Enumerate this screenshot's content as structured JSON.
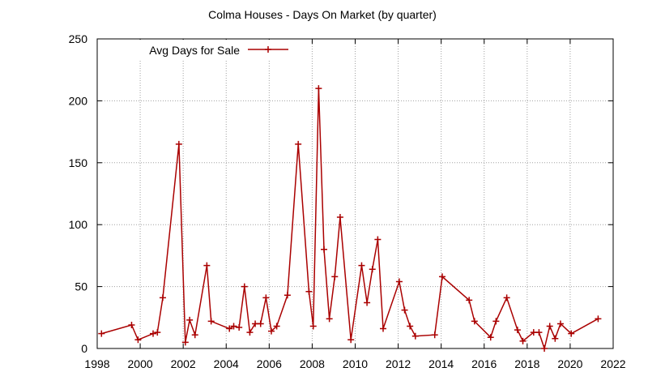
{
  "chart_data": {
    "type": "line",
    "title": "Colma Houses - Days On Market (by quarter)",
    "xlabel": "",
    "ylabel": "",
    "xlim": [
      1998,
      2022
    ],
    "ylim": [
      0,
      250
    ],
    "xticks": [
      1998,
      2000,
      2002,
      2004,
      2006,
      2008,
      2010,
      2012,
      2014,
      2016,
      2018,
      2020,
      2022
    ],
    "yticks": [
      0,
      50,
      100,
      150,
      200,
      250
    ],
    "grid": true,
    "legend_position": "top-left",
    "series": [
      {
        "name": "Avg Days for Sale",
        "color": "#aa0000",
        "marker": "plus",
        "x": [
          1998.2,
          1999.6,
          1999.9,
          2000.6,
          2000.8,
          2001.05,
          2001.8,
          2002.1,
          2002.3,
          2002.55,
          2003.1,
          2003.3,
          2004.15,
          2004.35,
          2004.6,
          2004.85,
          2005.1,
          2005.35,
          2005.6,
          2005.85,
          2006.1,
          2006.35,
          2006.85,
          2007.35,
          2007.85,
          2008.05,
          2008.3,
          2008.55,
          2008.8,
          2009.05,
          2009.3,
          2009.8,
          2010.3,
          2010.55,
          2010.8,
          2011.05,
          2011.3,
          2012.05,
          2012.3,
          2012.55,
          2012.8,
          2013.7,
          2014.05,
          2015.3,
          2015.55,
          2016.3,
          2016.55,
          2017.05,
          2017.55,
          2017.8,
          2018.3,
          2018.55,
          2018.8,
          2019.05,
          2019.3,
          2019.55,
          2020.05,
          2021.3
        ],
        "values": [
          12,
          19,
          7,
          12,
          13,
          41,
          165,
          5,
          23,
          11,
          67,
          22,
          16,
          18,
          17,
          50,
          13,
          20,
          20,
          41,
          14,
          18,
          43,
          165,
          46,
          18,
          210,
          80,
          24,
          58,
          106,
          7,
          67,
          37,
          64,
          88,
          16,
          54,
          31,
          18,
          10,
          11,
          58,
          39,
          22,
          9,
          22,
          41,
          15,
          6,
          13,
          13,
          0,
          18,
          8,
          20,
          12,
          24
        ]
      }
    ]
  }
}
